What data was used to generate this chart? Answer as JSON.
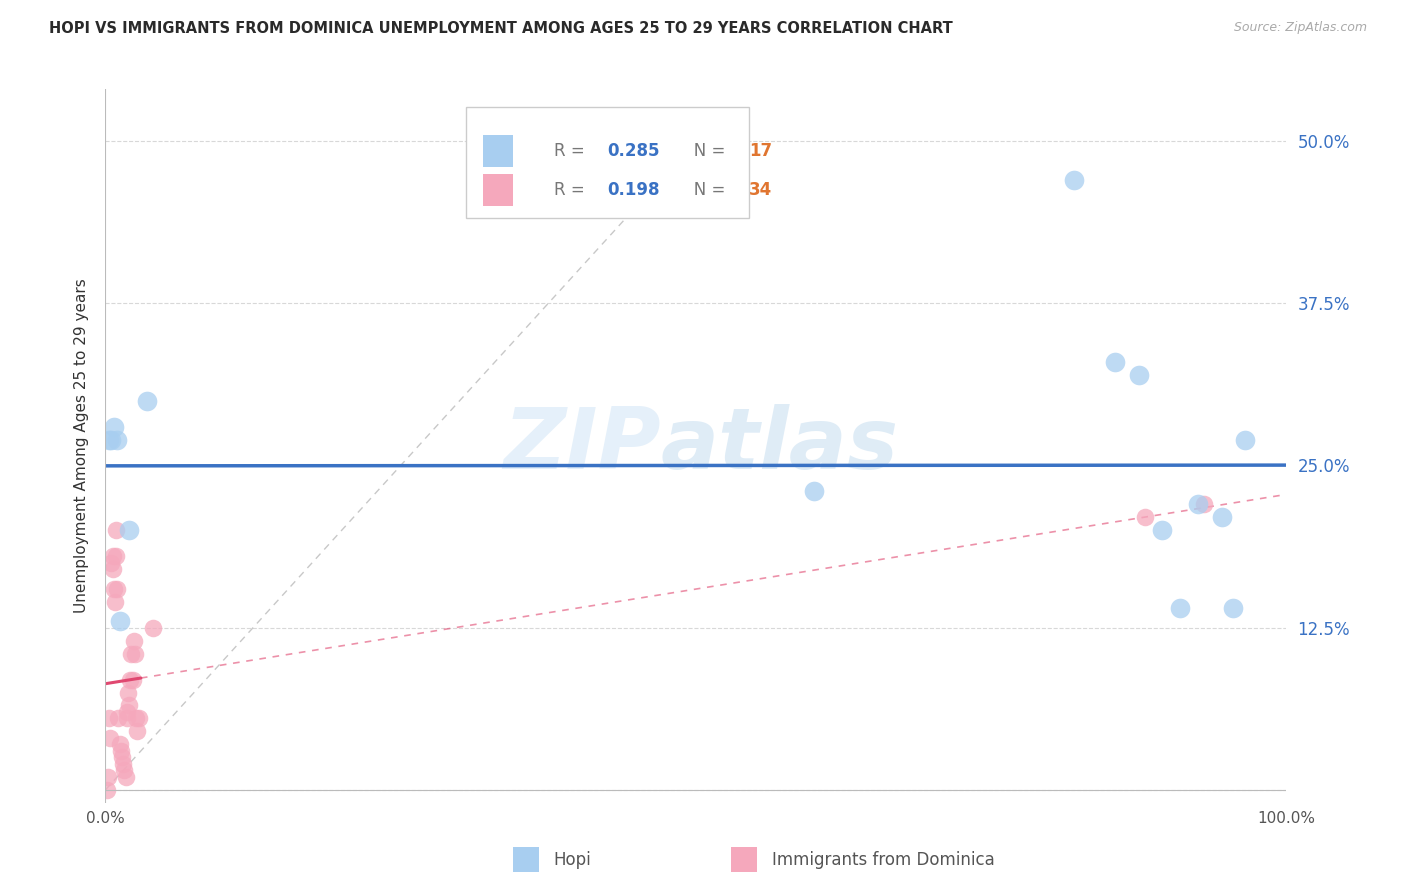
{
  "title": "HOPI VS IMMIGRANTS FROM DOMINICA UNEMPLOYMENT AMONG AGES 25 TO 29 YEARS CORRELATION CHART",
  "source": "Source: ZipAtlas.com",
  "ylabel": "Unemployment Among Ages 25 to 29 years",
  "hopi_r": "0.285",
  "hopi_n": "17",
  "dominica_r": "0.198",
  "dominica_n": "34",
  "hopi_color": "#a8cef0",
  "dominica_color": "#f5a8bc",
  "trend_blue": "#3a72c4",
  "trend_pink": "#e04870",
  "ref_line_color": "#c8c8c8",
  "hopi_x": [
    0.003,
    0.005,
    0.007,
    0.01,
    0.012,
    0.02,
    0.035,
    0.6,
    0.82,
    0.855,
    0.875,
    0.895,
    0.91,
    0.925,
    0.945,
    0.955,
    0.965
  ],
  "hopi_y": [
    0.27,
    0.27,
    0.28,
    0.27,
    0.13,
    0.2,
    0.3,
    0.23,
    0.47,
    0.33,
    0.32,
    0.2,
    0.14,
    0.22,
    0.21,
    0.14,
    0.27
  ],
  "dominica_x": [
    0.001,
    0.002,
    0.003,
    0.004,
    0.005,
    0.006,
    0.006,
    0.007,
    0.008,
    0.009,
    0.009,
    0.01,
    0.011,
    0.012,
    0.013,
    0.014,
    0.015,
    0.016,
    0.017,
    0.018,
    0.018,
    0.019,
    0.02,
    0.021,
    0.022,
    0.023,
    0.024,
    0.025,
    0.026,
    0.027,
    0.028,
    0.04,
    0.88,
    0.93
  ],
  "dominica_y": [
    0.0,
    0.01,
    0.055,
    0.04,
    0.175,
    0.18,
    0.17,
    0.155,
    0.145,
    0.18,
    0.2,
    0.155,
    0.055,
    0.035,
    0.03,
    0.025,
    0.02,
    0.015,
    0.01,
    0.055,
    0.06,
    0.075,
    0.065,
    0.085,
    0.105,
    0.085,
    0.115,
    0.105,
    0.055,
    0.045,
    0.055,
    0.125,
    0.21,
    0.22
  ],
  "xlim": [
    0.0,
    1.0
  ],
  "ylim": [
    -0.01,
    0.54
  ],
  "plot_ylim": [
    0.0,
    0.52
  ],
  "yticks": [
    0.0,
    0.125,
    0.25,
    0.375,
    0.5
  ],
  "yticklabels_right": [
    "",
    "12.5%",
    "25.0%",
    "37.5%",
    "50.0%"
  ],
  "xtick_positions": [
    0.0,
    1.0
  ],
  "xticklabels": [
    "0.0%",
    "100.0%"
  ],
  "bg_color": "#ffffff",
  "grid_color": "#d8d8d8",
  "watermark_zip": "ZIP",
  "watermark_atlas": "atlas"
}
